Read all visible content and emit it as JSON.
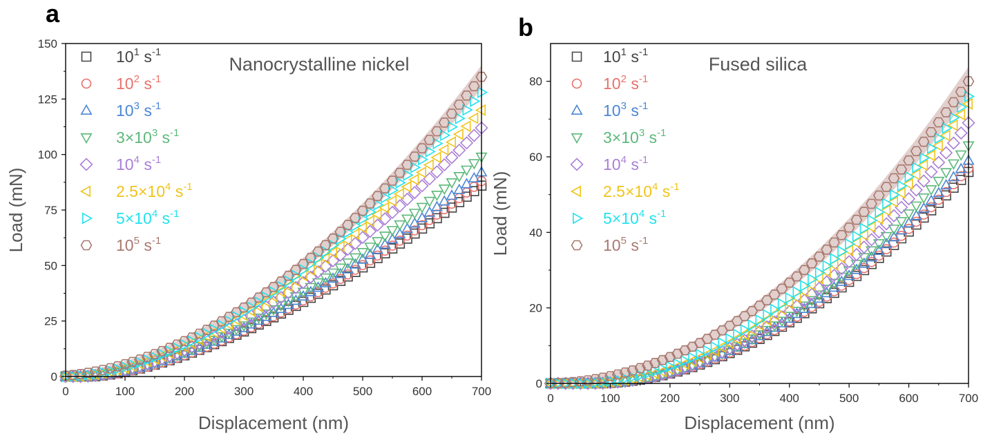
{
  "chart_data": [
    {
      "panel": "a",
      "type": "scatter",
      "title": "Nanocrystalline nickel",
      "xlabel": "Displacement (nm)",
      "ylabel": "Load (mN)",
      "xlim": [
        0,
        700
      ],
      "ylim": [
        0,
        150
      ],
      "xticks": [
        0,
        100,
        200,
        300,
        400,
        500,
        600,
        700
      ],
      "yticks": [
        0,
        25,
        50,
        75,
        100,
        125,
        150
      ],
      "legend_position": "top-left",
      "series": [
        {
          "name": "10^1 s^-1",
          "label_base": "10",
          "label_exp": "1",
          "label_unit": " s",
          "label_unit_exp": "-1",
          "marker": "square",
          "color": "#444444",
          "x0": 40,
          "y_end": 86,
          "p": 1.55,
          "band": 0
        },
        {
          "name": "10^2 s^-1",
          "label_base": "10",
          "label_exp": "2",
          "label_unit": " s",
          "label_unit_exp": "-1",
          "marker": "circle",
          "color": "#e8716b",
          "x0": 42,
          "y_end": 88,
          "p": 1.55,
          "band": 0
        },
        {
          "name": "10^3 s^-1",
          "label_base": "10",
          "label_exp": "3",
          "label_unit": " s",
          "label_unit_exp": "-1",
          "marker": "triangle-up",
          "color": "#4a86d4",
          "x0": 38,
          "y_end": 92,
          "p": 1.55,
          "band": 0
        },
        {
          "name": "3×10^3 s^-1",
          "label_base": "3×10",
          "label_exp": "3",
          "label_unit": " s",
          "label_unit_exp": "-1",
          "marker": "triangle-down",
          "color": "#5cb87a",
          "x0": 32,
          "y_end": 99,
          "p": 1.6,
          "band": 0
        },
        {
          "name": "10^4 s^-1",
          "label_base": "10",
          "label_exp": "4",
          "label_unit": " s",
          "label_unit_exp": "-1",
          "marker": "diamond",
          "color": "#a97fd6",
          "x0": 26,
          "y_end": 112,
          "p": 1.65,
          "band": 0
        },
        {
          "name": "2.5×10^4 s^-1",
          "label_base": "2.5×10",
          "label_exp": "4",
          "label_unit": " s",
          "label_unit_exp": "-1",
          "marker": "triangle-left",
          "color": "#f0c419",
          "x0": 10,
          "y_end": 120,
          "p": 1.7,
          "band": 0
        },
        {
          "name": "5×10^4 s^-1",
          "label_base": "5×10",
          "label_exp": "4",
          "label_unit": " s",
          "label_unit_exp": "-1",
          "marker": "triangle-right",
          "color": "#22e2ee",
          "x0": 0,
          "y_end": 128,
          "p": 1.75,
          "band": 0
        },
        {
          "name": "10^5 s^-1",
          "label_base": "10",
          "label_exp": "5",
          "label_unit": " s",
          "label_unit_exp": "-1",
          "marker": "hexagon",
          "color": "#a8786f",
          "x0": -30,
          "y_end": 135,
          "p": 1.85,
          "band": 4
        }
      ]
    },
    {
      "panel": "b",
      "type": "scatter",
      "title": "Fused silica",
      "xlabel": "Displacement (nm)",
      "ylabel": "Load (mN)",
      "xlim": [
        0,
        700
      ],
      "ylim": [
        0,
        90
      ],
      "xticks": [
        0,
        100,
        200,
        300,
        400,
        500,
        600,
        700
      ],
      "yticks": [
        0,
        20,
        40,
        60,
        80
      ],
      "legend_position": "top-left",
      "series": [
        {
          "name": "10^1 s^-1",
          "label_base": "10",
          "label_exp": "1",
          "label_unit": " s",
          "label_unit_exp": "-1",
          "marker": "square",
          "color": "#444444",
          "x0": 75,
          "y_end": 56,
          "p": 1.9,
          "band": 0
        },
        {
          "name": "10^2 s^-1",
          "label_base": "10",
          "label_exp": "2",
          "label_unit": " s",
          "label_unit_exp": "-1",
          "marker": "circle",
          "color": "#e8716b",
          "x0": 75,
          "y_end": 57,
          "p": 1.9,
          "band": 0
        },
        {
          "name": "10^3 s^-1",
          "label_base": "10",
          "label_exp": "3",
          "label_unit": " s",
          "label_unit_exp": "-1",
          "marker": "triangle-up",
          "color": "#4a86d4",
          "x0": 72,
          "y_end": 59,
          "p": 1.9,
          "band": 0
        },
        {
          "name": "3×10^3 s^-1",
          "label_base": "3×10",
          "label_exp": "3",
          "label_unit": " s",
          "label_unit_exp": "-1",
          "marker": "triangle-down",
          "color": "#5cb87a",
          "x0": 70,
          "y_end": 63,
          "p": 1.95,
          "band": 0
        },
        {
          "name": "10^4 s^-1",
          "label_base": "10",
          "label_exp": "4",
          "label_unit": " s",
          "label_unit_exp": "-1",
          "marker": "diamond",
          "color": "#a97fd6",
          "x0": 68,
          "y_end": 69,
          "p": 2.0,
          "band": 0
        },
        {
          "name": "2.5×10^4 s^-1",
          "label_base": "2.5×10",
          "label_exp": "4",
          "label_unit": " s",
          "label_unit_exp": "-1",
          "marker": "triangle-left",
          "color": "#f0c419",
          "x0": 55,
          "y_end": 74,
          "p": 2.0,
          "band": 0
        },
        {
          "name": "5×10^4 s^-1",
          "label_base": "5×10",
          "label_exp": "4",
          "label_unit": " s",
          "label_unit_exp": "-1",
          "marker": "triangle-right",
          "color": "#22e2ee",
          "x0": 40,
          "y_end": 76,
          "p": 2.0,
          "band": 0
        },
        {
          "name": "10^5 s^-1",
          "label_base": "10",
          "label_exp": "5",
          "label_unit": " s",
          "label_unit_exp": "-1",
          "marker": "hexagon",
          "color": "#a8786f",
          "x0": -10,
          "y_end": 80,
          "p": 2.0,
          "band": 3
        }
      ]
    }
  ]
}
